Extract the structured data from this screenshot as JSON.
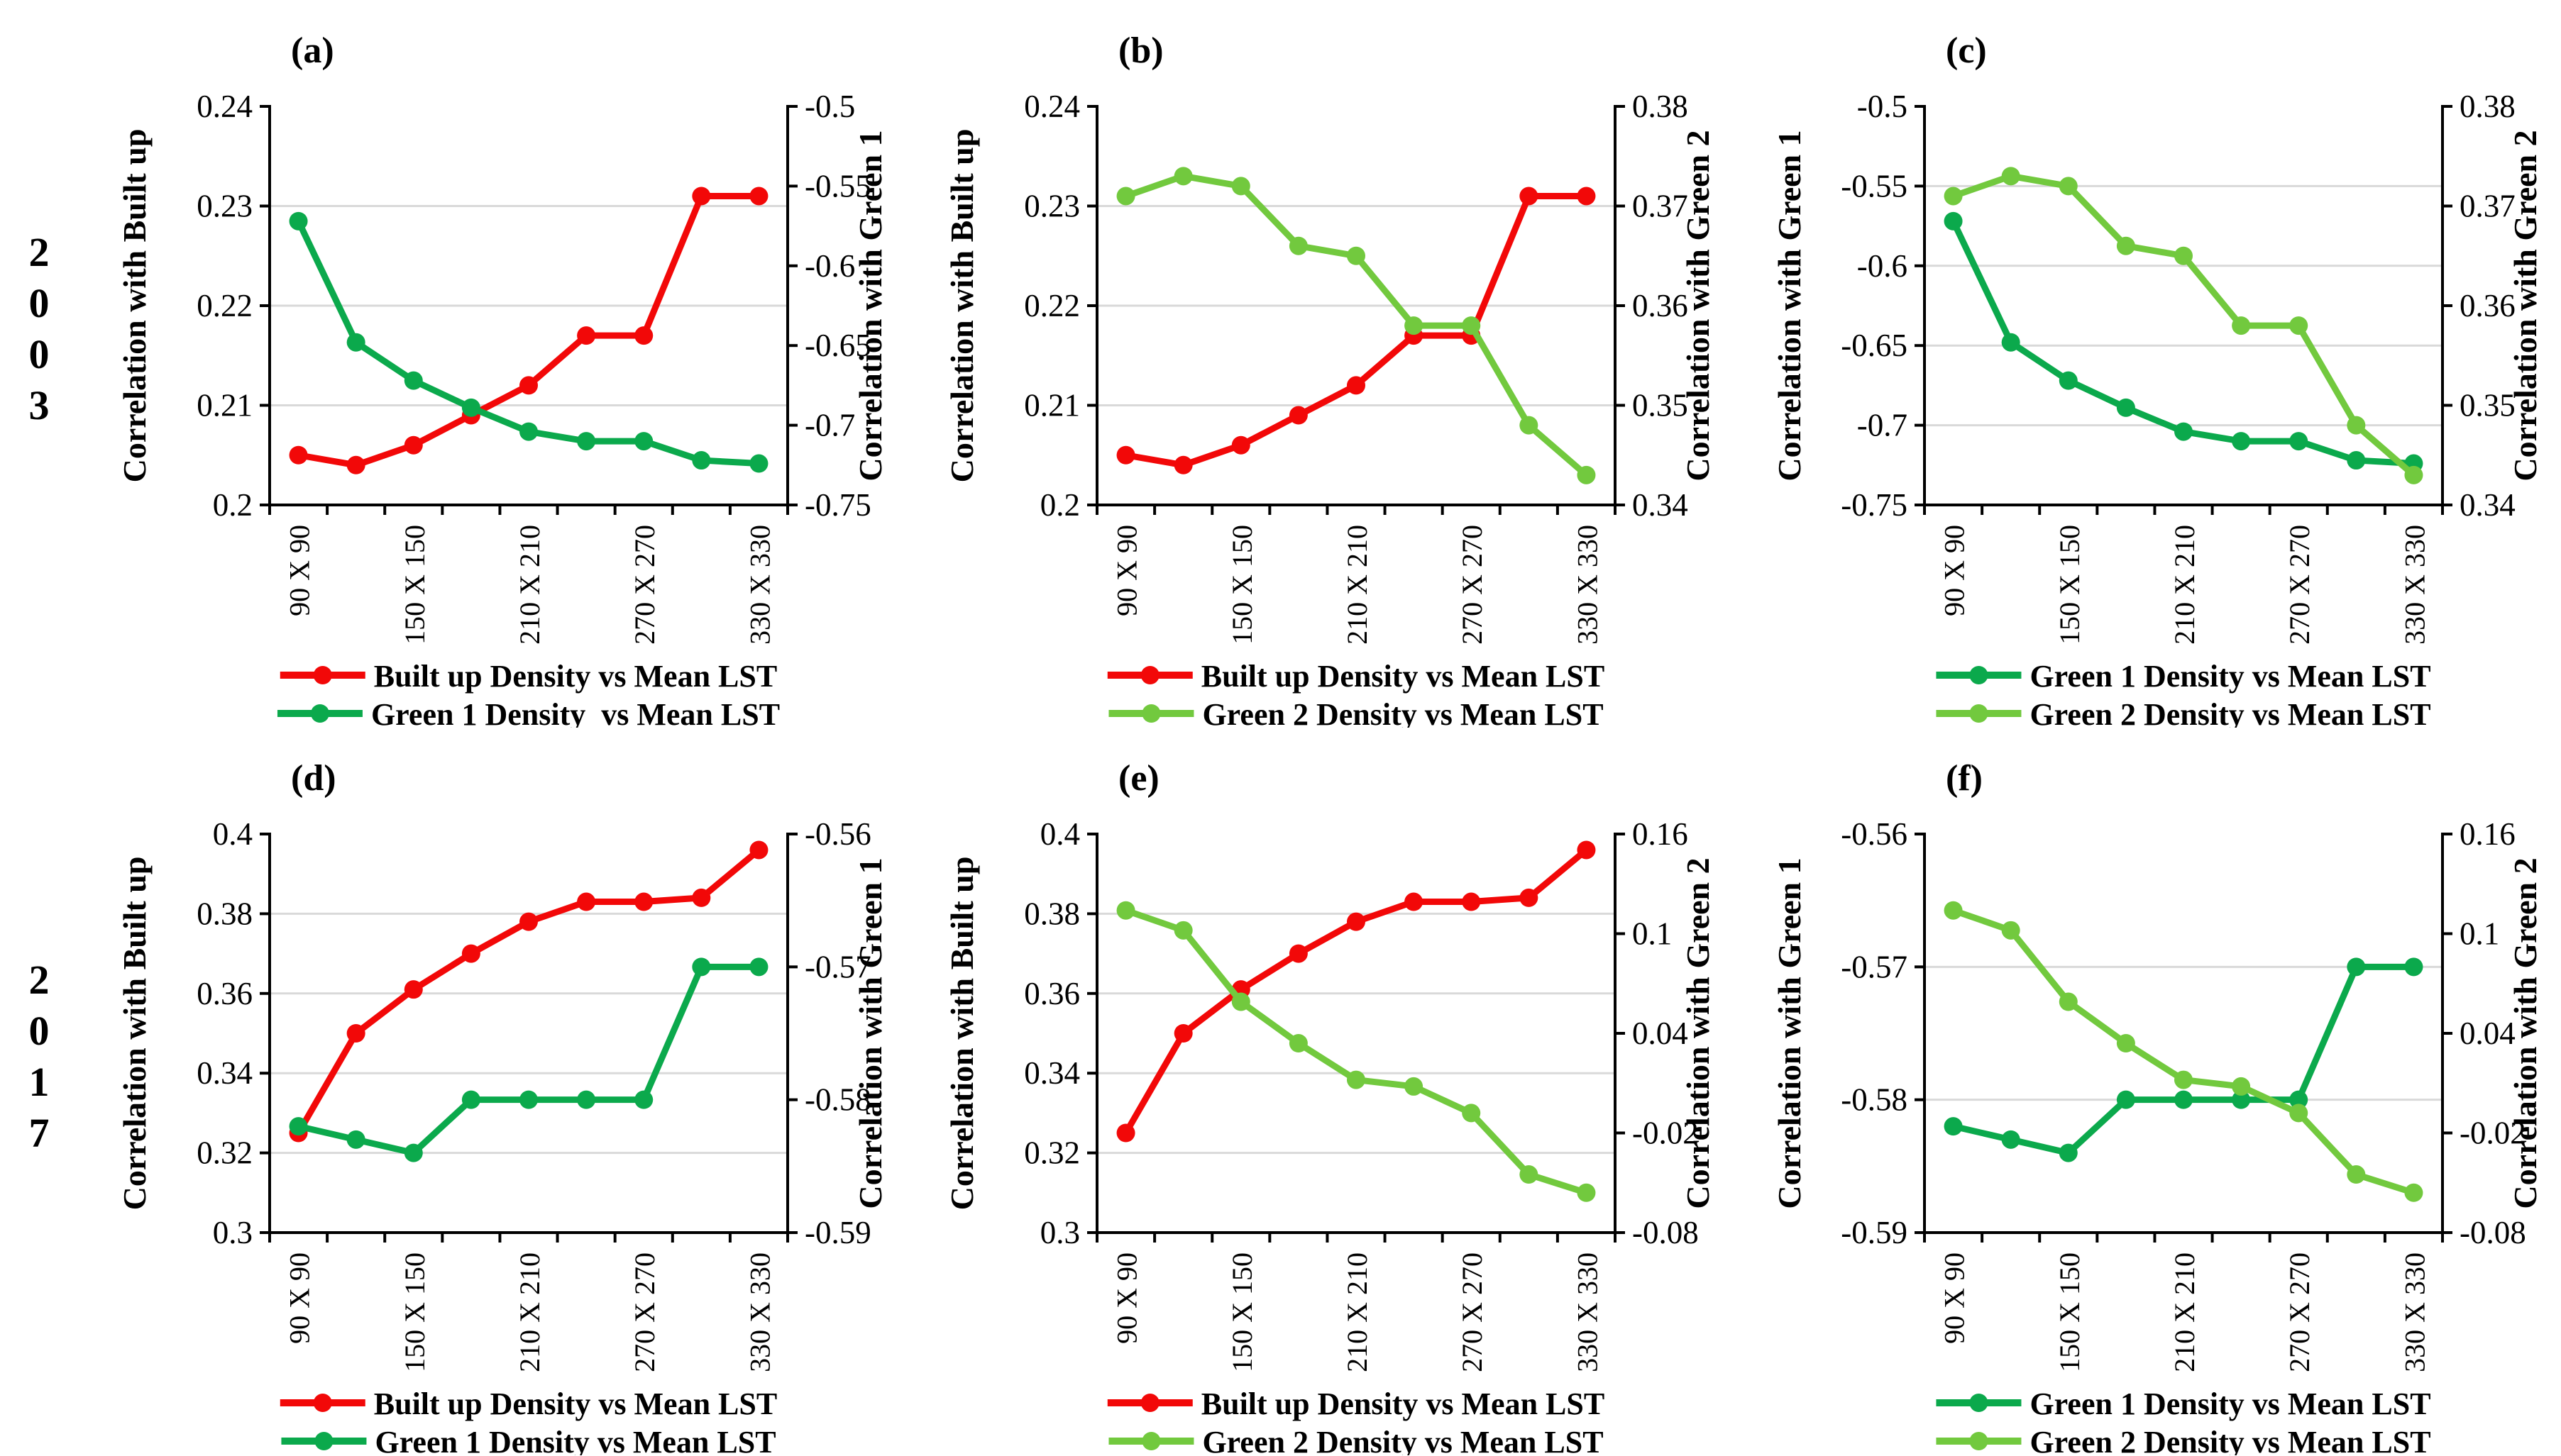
{
  "figure_title": "",
  "rows": [
    {
      "year": "2003"
    },
    {
      "year": "2017"
    }
  ],
  "colors": {
    "red": "#F20808",
    "green1": "#0BA94C",
    "green2": "#72C93E",
    "grid": "#D9D9D9",
    "axis": "#000000",
    "text": "#000000",
    "background": "#FFFFFF"
  },
  "x_axis": {
    "num_points": 9,
    "visible_labels": [
      "90 X 90",
      "150 X 150",
      "210 X 210",
      "270 X 270",
      "330 X 330"
    ],
    "label_indices": [
      0,
      2,
      4,
      6,
      8
    ]
  },
  "chart_data": [
    {
      "id": "a",
      "type": "line",
      "panel_label": "(a)",
      "row": 0,
      "left_axis": {
        "title": "Correlation with Built up",
        "min": 0.2,
        "max": 0.24,
        "tick_values": [
          0.2,
          0.21,
          0.22,
          0.23,
          0.24
        ],
        "tick_labels": [
          "0.2",
          "0.21",
          "0.22",
          "0.23",
          "0.24"
        ]
      },
      "right_axis": {
        "title": "Correlation with Green 1",
        "min": -0.75,
        "max": -0.5,
        "tick_values": [
          -0.75,
          -0.7,
          -0.65,
          -0.6,
          -0.55,
          -0.5
        ],
        "tick_labels": [
          "-0.75",
          "-0.7",
          "-0.65",
          "-0.6",
          "-0.55",
          "-0.5"
        ]
      },
      "series": [
        {
          "name": "Built up Density vs Mean LST",
          "axis": "left",
          "color": "red",
          "values": [
            0.205,
            0.204,
            0.206,
            0.209,
            0.212,
            0.217,
            0.217,
            0.231,
            0.231
          ]
        },
        {
          "name": "Green 1 Density  vs Mean LST",
          "axis": "right",
          "color": "green1",
          "values": [
            -0.572,
            -0.648,
            -0.672,
            -0.689,
            -0.704,
            -0.71,
            -0.71,
            -0.722,
            -0.724
          ]
        }
      ]
    },
    {
      "id": "b",
      "type": "line",
      "panel_label": "(b)",
      "row": 0,
      "left_axis": {
        "title": "Correlation with Built up",
        "min": 0.2,
        "max": 0.24,
        "tick_values": [
          0.2,
          0.21,
          0.22,
          0.23,
          0.24
        ],
        "tick_labels": [
          "0.2",
          "0.21",
          "0.22",
          "0.23",
          "0.24"
        ]
      },
      "right_axis": {
        "title": "Correlation with Green 2",
        "min": 0.34,
        "max": 0.38,
        "tick_values": [
          0.34,
          0.35,
          0.36,
          0.37,
          0.38
        ],
        "tick_labels": [
          "0.34",
          "0.35",
          "0.36",
          "0.37",
          "0.38"
        ]
      },
      "series": [
        {
          "name": "Built up Density vs Mean LST",
          "axis": "left",
          "color": "red",
          "values": [
            0.205,
            0.204,
            0.206,
            0.209,
            0.212,
            0.217,
            0.217,
            0.231,
            0.231
          ]
        },
        {
          "name": "Green 2 Density vs Mean LST",
          "axis": "right",
          "color": "green2",
          "values": [
            0.371,
            0.373,
            0.372,
            0.366,
            0.365,
            0.358,
            0.358,
            0.348,
            0.343
          ]
        }
      ]
    },
    {
      "id": "c",
      "type": "line",
      "panel_label": "(c)",
      "row": 0,
      "left_axis": {
        "title": "Correlation with Green 1",
        "min": -0.75,
        "max": -0.5,
        "tick_values": [
          -0.75,
          -0.7,
          -0.65,
          -0.6,
          -0.55,
          -0.5
        ],
        "tick_labels": [
          "-0.75",
          "-0.7",
          "-0.65",
          "-0.6",
          "-0.55",
          "-0.5"
        ]
      },
      "right_axis": {
        "title": "Correlation with Green 2",
        "min": 0.34,
        "max": 0.38,
        "tick_values": [
          0.34,
          0.35,
          0.36,
          0.37,
          0.38
        ],
        "tick_labels": [
          "0.34",
          "0.35",
          "0.36",
          "0.37",
          "0.38"
        ]
      },
      "series": [
        {
          "name": "Green 1 Density vs Mean LST",
          "axis": "left",
          "color": "green1",
          "values": [
            -0.572,
            -0.648,
            -0.672,
            -0.689,
            -0.704,
            -0.71,
            -0.71,
            -0.722,
            -0.724
          ]
        },
        {
          "name": "Green 2 Density vs Mean LST",
          "axis": "right",
          "color": "green2",
          "values": [
            0.371,
            0.373,
            0.372,
            0.366,
            0.365,
            0.358,
            0.358,
            0.348,
            0.343
          ]
        }
      ]
    },
    {
      "id": "d",
      "type": "line",
      "panel_label": "(d)",
      "row": 1,
      "left_axis": {
        "title": "Correlation with Built up",
        "min": 0.3,
        "max": 0.4,
        "tick_values": [
          0.3,
          0.32,
          0.34,
          0.36,
          0.38,
          0.4
        ],
        "tick_labels": [
          "0.3",
          "0.32",
          "0.34",
          "0.36",
          "0.38",
          "0.4"
        ]
      },
      "right_axis": {
        "title": "Correlation with Green 1",
        "min": -0.59,
        "max": -0.56,
        "tick_values": [
          -0.59,
          -0.58,
          -0.57,
          -0.56
        ],
        "tick_labels": [
          "-0.59",
          "-0.58",
          "-0.57",
          "-0.56"
        ]
      },
      "series": [
        {
          "name": "Built up Density vs Mean LST",
          "axis": "left",
          "color": "red",
          "values": [
            0.325,
            0.35,
            0.361,
            0.37,
            0.378,
            0.383,
            0.383,
            0.384,
            0.396
          ]
        },
        {
          "name": "Green 1 Density vs Mean LST",
          "axis": "right",
          "color": "green1",
          "values": [
            -0.582,
            -0.583,
            -0.584,
            -0.58,
            -0.58,
            -0.58,
            -0.58,
            -0.57,
            -0.57
          ]
        }
      ]
    },
    {
      "id": "e",
      "type": "line",
      "panel_label": "(e)",
      "row": 1,
      "left_axis": {
        "title": "Correlation with Built up",
        "min": 0.3,
        "max": 0.4,
        "tick_values": [
          0.3,
          0.32,
          0.34,
          0.36,
          0.38,
          0.4
        ],
        "tick_labels": [
          "0.3",
          "0.32",
          "0.34",
          "0.36",
          "0.38",
          "0.4"
        ]
      },
      "right_axis": {
        "title": "Correlation with Green 2",
        "min": -0.08,
        "max": 0.16,
        "tick_values": [
          -0.08,
          -0.02,
          0.04,
          0.1,
          0.16
        ],
        "tick_labels": [
          "-0.08",
          "-0.02",
          "0.04",
          "0.1",
          "0.16"
        ]
      },
      "series": [
        {
          "name": "Built up Density vs Mean LST",
          "axis": "left",
          "color": "red",
          "values": [
            0.325,
            0.35,
            0.361,
            0.37,
            0.378,
            0.383,
            0.383,
            0.384,
            0.396
          ]
        },
        {
          "name": "Green 2 Density vs Mean LST",
          "axis": "right",
          "color": "green2",
          "values": [
            0.114,
            0.102,
            0.059,
            0.034,
            0.012,
            0.008,
            -0.008,
            -0.045,
            -0.056
          ]
        }
      ]
    },
    {
      "id": "f",
      "type": "line",
      "panel_label": "(f)",
      "row": 1,
      "left_axis": {
        "title": "Correlation with Green 1",
        "min": -0.59,
        "max": -0.56,
        "tick_values": [
          -0.59,
          -0.58,
          -0.57,
          -0.56
        ],
        "tick_labels": [
          "-0.59",
          "-0.58",
          "-0.57",
          "-0.56"
        ]
      },
      "right_axis": {
        "title": "Correlation with Green 2",
        "min": -0.08,
        "max": 0.16,
        "tick_values": [
          -0.08,
          -0.02,
          0.04,
          0.1,
          0.16
        ],
        "tick_labels": [
          "-0.08",
          "-0.02",
          "0.04",
          "0.1",
          "0.16"
        ]
      },
      "series": [
        {
          "name": "Green 1 Density vs Mean LST",
          "axis": "left",
          "color": "green1",
          "values": [
            -0.582,
            -0.583,
            -0.584,
            -0.58,
            -0.58,
            -0.58,
            -0.58,
            -0.57,
            -0.57
          ]
        },
        {
          "name": "Green 2 Density vs Mean LST",
          "axis": "right",
          "color": "green2",
          "values": [
            0.114,
            0.102,
            0.059,
            0.034,
            0.012,
            0.008,
            -0.008,
            -0.045,
            -0.056
          ]
        }
      ]
    }
  ]
}
